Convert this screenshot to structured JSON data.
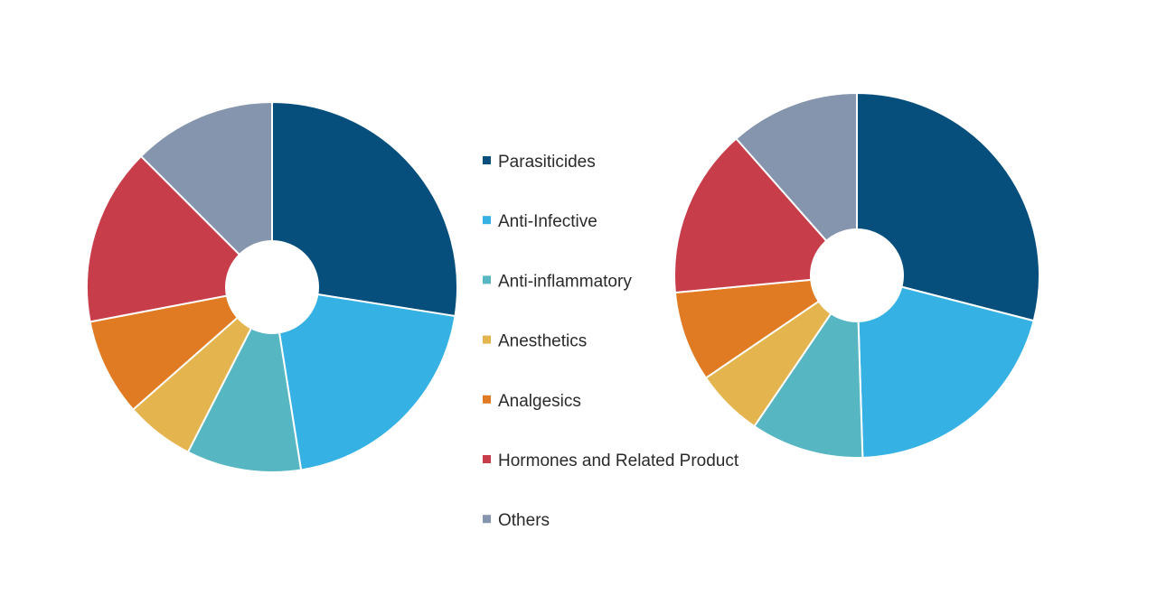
{
  "chart_data": [
    {
      "type": "pie",
      "hole": true,
      "categories": [
        "Parasiticides",
        "Anti-Infective",
        "Anti-inflammatory",
        "Anesthetics",
        "Analgesics",
        "Hormones and Related Product",
        "Others"
      ],
      "values": [
        27.5,
        20,
        10,
        6,
        8.5,
        15.5,
        12.5
      ],
      "colors": [
        "#064f7d",
        "#35b1e4",
        "#56b6c2",
        "#e4b54e",
        "#e17b23",
        "#c83d4a",
        "#8595ad"
      ],
      "start_angle": "12 o'clock",
      "direction": "clockwise"
    },
    {
      "type": "pie",
      "hole": true,
      "categories": [
        "Parasiticides",
        "Anti-Infective",
        "Anti-inflammatory",
        "Anesthetics",
        "Analgesics",
        "Hormones and Related Product",
        "Others"
      ],
      "values": [
        29,
        20.5,
        10,
        6,
        8,
        15,
        11.5
      ],
      "colors": [
        "#064f7d",
        "#35b1e4",
        "#56b6c2",
        "#e4b54e",
        "#e17b23",
        "#c83d4a",
        "#8595ad"
      ],
      "start_angle": "12 o'clock",
      "direction": "clockwise"
    }
  ],
  "legend": {
    "placement": "center",
    "items": [
      {
        "label": "Parasiticides",
        "color": "#064f7d"
      },
      {
        "label": "Anti-Infective",
        "color": "#35b1e4"
      },
      {
        "label": "Anti-inflammatory",
        "color": "#56b6c2"
      },
      {
        "label": "Anesthetics",
        "color": "#e4b54e"
      },
      {
        "label": "Analgesics",
        "color": "#e17b23"
      },
      {
        "label": "Hormones and Related Product",
        "color": "#c83d4a"
      },
      {
        "label": "Others",
        "color": "#8595ad"
      }
    ]
  }
}
